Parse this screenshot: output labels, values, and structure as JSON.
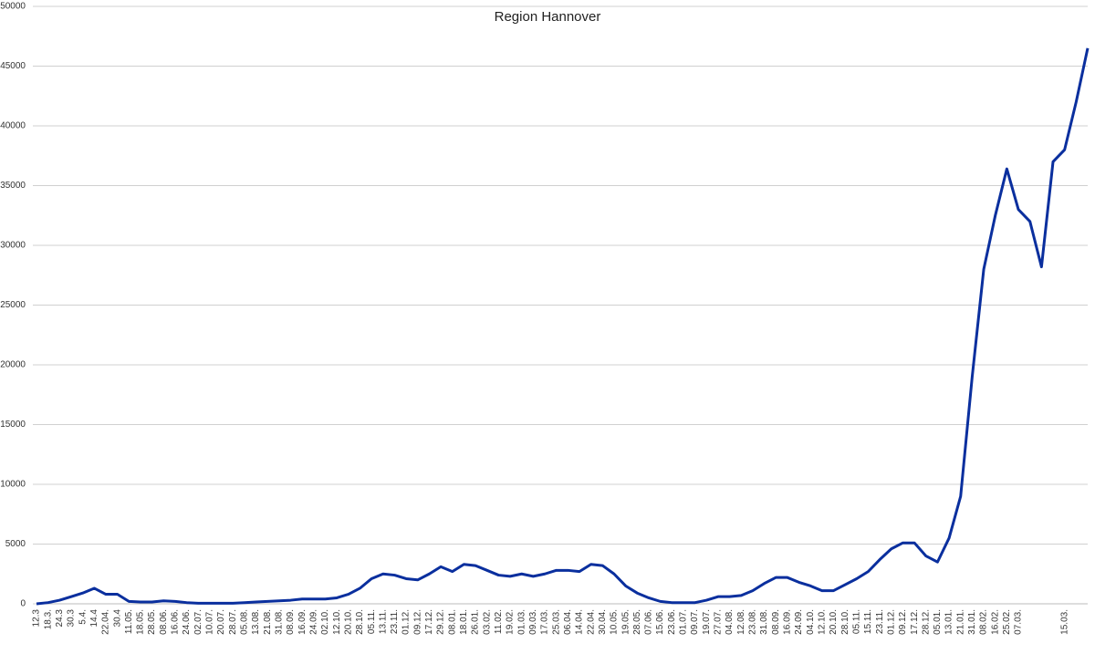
{
  "chart_data": {
    "type": "line",
    "title": "Region Hannover",
    "categories": [
      "12.3",
      "18.3.",
      "24.3",
      "30.3",
      "5.4.",
      "14.4",
      "22.04.",
      "30.4",
      "11.05.",
      "18.05.",
      "28.05.",
      "08.06.",
      "16.06.",
      "24.06.",
      "02.07.",
      "10.07.",
      "20.07.",
      "28.07.",
      "05.08.",
      "13.08.",
      "21.08.",
      "31.08.",
      "08.09.",
      "16.09.",
      "24.09.",
      "02.10.",
      "12.10.",
      "20.10.",
      "28.10.",
      "05.11.",
      "13.11.",
      "23.11.",
      "01.12.",
      "09.12.",
      "17.12.",
      "29.12.",
      "08.01.",
      "18.01.",
      "26.01.",
      "03.02.",
      "11.02.",
      "19.02.",
      "01.03.",
      "09.03.",
      "17.03.",
      "25.03.",
      "06.04.",
      "14.04.",
      "22.04.",
      "30.04.",
      "10.05.",
      "19.05.",
      "28.05.",
      "07.06.",
      "15.06.",
      "23.06.",
      "01.07.",
      "09.07.",
      "19.07.",
      "27.07.",
      "04.08.",
      "12.08.",
      "23.08.",
      "31.08.",
      "08.09.",
      "16.09.",
      "24.09.",
      "04.10.",
      "12.10.",
      "20.10.",
      "28.10.",
      "05.11.",
      "15.11.",
      "23.11.",
      "01.12.",
      "09.12.",
      "17.12.",
      "28.12.",
      "05.01.",
      "13.01.",
      "21.01.",
      "31.01.",
      "08.02.",
      "16.02.",
      "25.02.",
      "07.03.",
      null,
      null,
      null,
      "15.03.",
      null,
      null
    ],
    "series": [
      {
        "name": "Region Hannover",
        "color": "#0a2f9e",
        "values": [
          0,
          100,
          300,
          600,
          900,
          1300,
          800,
          800,
          200,
          150,
          150,
          250,
          200,
          100,
          50,
          50,
          50,
          50,
          100,
          150,
          200,
          250,
          300,
          400,
          400,
          400,
          500,
          800,
          1300,
          2100,
          2500,
          2400,
          2100,
          2000,
          2500,
          3100,
          2700,
          3300,
          3200,
          2800,
          2400,
          2300,
          2500,
          2300,
          2500,
          2800,
          2800,
          2700,
          3300,
          3200,
          2500,
          1500,
          900,
          500,
          200,
          100,
          100,
          100,
          300,
          600,
          600,
          700,
          1100,
          1700,
          2200,
          2200,
          1800,
          1500,
          1100,
          1100,
          1600,
          2100,
          2700,
          3700,
          4600,
          5100,
          5100,
          4000,
          3500,
          5500,
          9000,
          19000,
          28000,
          32500,
          36400,
          33000,
          32000,
          28200,
          37000,
          38000,
          42000,
          46500
        ]
      }
    ],
    "ylim": [
      0,
      50000
    ],
    "yticks": [
      0,
      5000,
      10000,
      15000,
      20000,
      25000,
      30000,
      35000,
      40000,
      45000,
      50000
    ],
    "grid": true
  }
}
